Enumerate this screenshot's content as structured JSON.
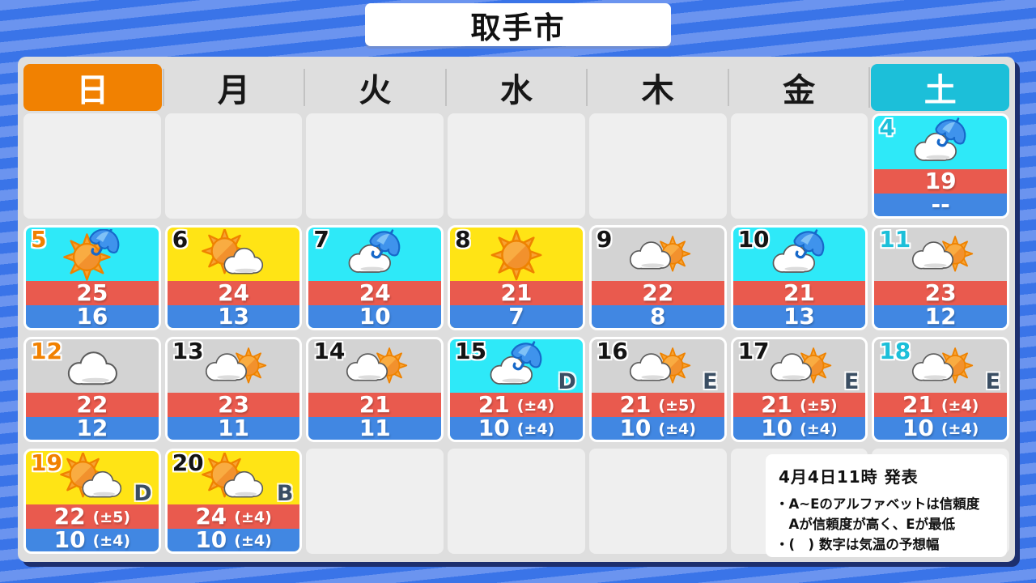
{
  "title": "取手市",
  "weekday_header": {
    "days": [
      {
        "label": "日",
        "type": "sunday",
        "name": "sun"
      },
      {
        "label": "月",
        "type": "weekday",
        "name": "mon"
      },
      {
        "label": "火",
        "type": "weekday",
        "name": "tue"
      },
      {
        "label": "水",
        "type": "weekday",
        "name": "wed"
      },
      {
        "label": "木",
        "type": "weekday",
        "name": "thu"
      },
      {
        "label": "金",
        "type": "weekday",
        "name": "fri"
      },
      {
        "label": "土",
        "type": "saturday",
        "name": "sat"
      }
    ]
  },
  "calendar": {
    "rows": [
      [
        null,
        null,
        null,
        null,
        null,
        null,
        {
          "date": "4",
          "icon": "cloud-umbrella",
          "bg": "cyan",
          "high": "19",
          "low": "--"
        }
      ],
      [
        {
          "date": "5",
          "icon": "sun-umbrella",
          "bg": "cyan",
          "high": "25",
          "low": "16"
        },
        {
          "date": "6",
          "icon": "sun-cloud",
          "bg": "yellow",
          "high": "24",
          "low": "13"
        },
        {
          "date": "7",
          "icon": "cloud-umbrella",
          "bg": "cyan",
          "high": "24",
          "low": "10"
        },
        {
          "date": "8",
          "icon": "sun",
          "bg": "yellow",
          "high": "21",
          "low": "7"
        },
        {
          "date": "9",
          "icon": "cloud-sun",
          "bg": "gray",
          "high": "22",
          "low": "8"
        },
        {
          "date": "10",
          "icon": "cloud-umbrella",
          "bg": "cyan",
          "high": "21",
          "low": "13"
        },
        {
          "date": "11",
          "icon": "cloud-sun",
          "bg": "gray",
          "high": "23",
          "low": "12"
        }
      ],
      [
        {
          "date": "12",
          "icon": "cloud",
          "bg": "gray",
          "high": "22",
          "low": "12"
        },
        {
          "date": "13",
          "icon": "cloud-sun",
          "bg": "gray",
          "high": "23",
          "low": "11"
        },
        {
          "date": "14",
          "icon": "cloud-sun",
          "bg": "gray",
          "high": "21",
          "low": "11"
        },
        {
          "date": "15",
          "icon": "cloud-umbrella",
          "bg": "cyan",
          "reliability": "D",
          "high": "21",
          "high_range": "(±4)",
          "low": "10",
          "low_range": "(±4)"
        },
        {
          "date": "16",
          "icon": "cloud-sun",
          "bg": "gray",
          "reliability": "E",
          "high": "21",
          "high_range": "(±5)",
          "low": "10",
          "low_range": "(±4)"
        },
        {
          "date": "17",
          "icon": "cloud-sun",
          "bg": "gray",
          "reliability": "E",
          "high": "21",
          "high_range": "(±5)",
          "low": "10",
          "low_range": "(±4)"
        },
        {
          "date": "18",
          "icon": "cloud-sun",
          "bg": "gray",
          "reliability": "E",
          "high": "21",
          "high_range": "(±4)",
          "low": "10",
          "low_range": "(±4)"
        }
      ],
      [
        {
          "date": "19",
          "icon": "sun-cloud",
          "bg": "yellow",
          "reliability": "D",
          "high": "22",
          "high_range": "(±5)",
          "low": "10",
          "low_range": "(±4)"
        },
        {
          "date": "20",
          "icon": "sun-cloud",
          "bg": "yellow",
          "reliability": "B",
          "high": "24",
          "high_range": "(±4)",
          "low": "10",
          "low_range": "(±4)"
        },
        null,
        null,
        null,
        null,
        null
      ]
    ]
  },
  "notes": {
    "issued": "4月4日11時 発表",
    "lines": [
      "・A~Eのアルファベットは信頼度",
      "　Aが信頼度が高く、Eが最低",
      "・(　) 数字は気温の予想幅"
    ]
  },
  "colors": {
    "sunday_orange": "#F18101",
    "saturday_cyan": "#1CBFD9",
    "cell_cyan": "#2EE9F8",
    "cell_yellow": "#FFE415",
    "cell_gray": "#D3D3D3",
    "empty_cell": "#EFEFEF",
    "high_red": "#E95A4E",
    "low_blue": "#4187E2",
    "panel_gray": "#DEDEDE",
    "panel_shadow_navy": "#1D2F6E",
    "bg_stripe_light": "#6B94EF",
    "bg_stripe_dark": "#3A74E8",
    "reliability_navy": "#3A4E63"
  }
}
